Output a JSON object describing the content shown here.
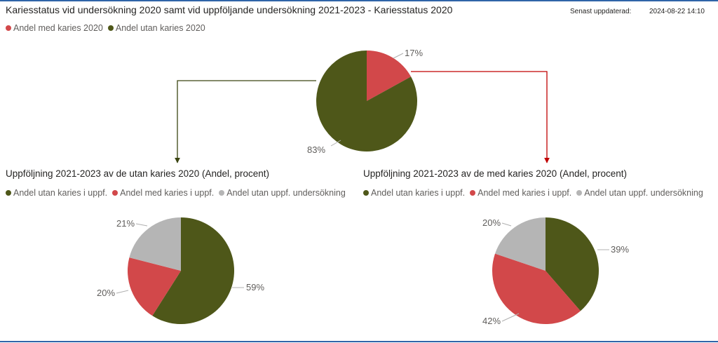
{
  "header": {
    "title": "Kariesstatus vid undersökning 2020 samt vid uppföljande undersökning 2021-2023 - Kariesstatus 2020",
    "updated_label": "Senast uppdaterad:",
    "updated_value": "2024-08-22 14:10"
  },
  "colors": {
    "green": "#4e5719",
    "red": "#d2484a",
    "grey": "#b5b5b5",
    "accent_blue": "#2f64a8",
    "arrow_green": "#3b4512",
    "arrow_red": "#c00000"
  },
  "chart_data": [
    {
      "type": "pie",
      "title": "",
      "legend": [
        {
          "name": "Andel med karies 2020",
          "color": "#d2484a"
        },
        {
          "name": "Andel utan karies 2020",
          "color": "#4e5719"
        }
      ],
      "slices": [
        {
          "name": "Andel med karies 2020",
          "value": 17,
          "label": "17%",
          "color": "#d2484a"
        },
        {
          "name": "Andel utan karies 2020",
          "value": 83,
          "label": "83%",
          "color": "#4e5719"
        }
      ]
    },
    {
      "type": "pie",
      "title": "Uppföljning 2021-2023 av de utan karies 2020 (Andel, procent)",
      "legend": [
        {
          "name": "Andel utan karies i uppf.",
          "color": "#4e5719"
        },
        {
          "name": "Andel med karies i uppf.",
          "color": "#d2484a"
        },
        {
          "name": "Andel utan uppf. undersökning",
          "color": "#b5b5b5"
        }
      ],
      "slices": [
        {
          "name": "Andel utan karies i uppf.",
          "value": 59,
          "label": "59%",
          "color": "#4e5719"
        },
        {
          "name": "Andel med karies i uppf.",
          "value": 20,
          "label": "20%",
          "color": "#d2484a"
        },
        {
          "name": "Andel utan uppf. undersökning",
          "value": 21,
          "label": "21%",
          "color": "#b5b5b5"
        }
      ]
    },
    {
      "type": "pie",
      "title": "Uppföljning 2021-2023 av de med karies 2020 (Andel, procent)",
      "legend": [
        {
          "name": "Andel utan karies i uppf.",
          "color": "#4e5719"
        },
        {
          "name": "Andel med karies i uppf.",
          "color": "#d2484a"
        },
        {
          "name": "Andel utan uppf. undersökning",
          "color": "#b5b5b5"
        }
      ],
      "slices": [
        {
          "name": "Andel utan karies i uppf.",
          "value": 39,
          "label": "39%",
          "color": "#4e5719"
        },
        {
          "name": "Andel med karies i uppf.",
          "value": 42,
          "label": "42%",
          "color": "#d2484a"
        },
        {
          "name": "Andel utan uppf. undersökning",
          "value": 20,
          "label": "20%",
          "color": "#b5b5b5"
        }
      ]
    }
  ]
}
